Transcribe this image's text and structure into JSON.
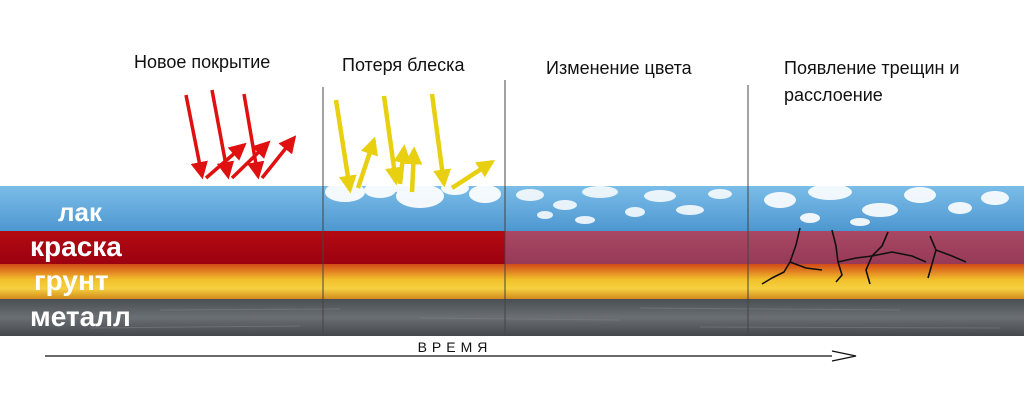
{
  "stages": [
    {
      "title": "Новое покрытие"
    },
    {
      "title": "Потеря блеска"
    },
    {
      "title": "Изменение цвета"
    },
    {
      "title": "Появление трещин и расслоение"
    }
  ],
  "layers": [
    {
      "label": "лак",
      "color": "#5aa7dc"
    },
    {
      "label": "краска",
      "color": "#b00010"
    },
    {
      "label": "грунт",
      "color": "#e8a020"
    },
    {
      "label": "металл",
      "color": "#555a5e"
    }
  ],
  "axis": {
    "label": "ВРЕМЯ"
  },
  "colors": {
    "faded_paint": "#a03e5c",
    "arrow_new": "#e01010",
    "arrow_gloss_loss": "#e8d010",
    "divider": "#444444",
    "cracks": "#111111"
  }
}
